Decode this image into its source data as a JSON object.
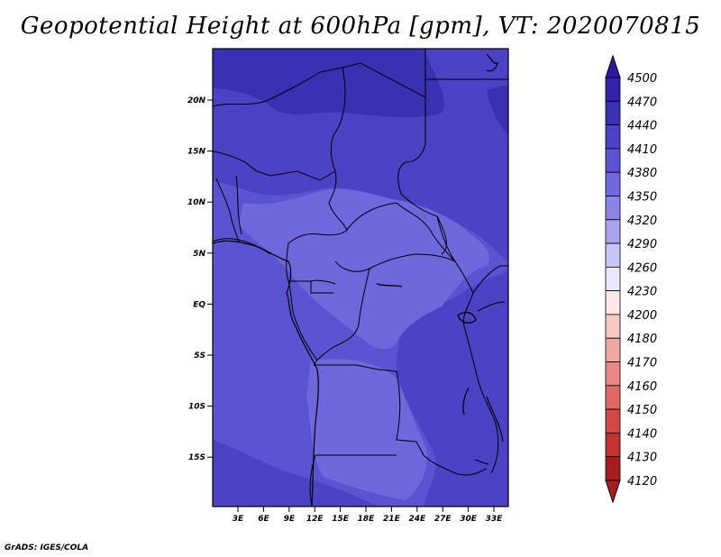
{
  "title": "Geopotential Height at 600hPa [gpm], VT: 2020070815",
  "credit": "GrADS: IGES/COLA",
  "map": {
    "lat_labels": [
      "20N",
      "15N",
      "10N",
      "5N",
      "EQ",
      "5S",
      "10S",
      "15S"
    ],
    "lon_labels": [
      "3E",
      "6E",
      "9E",
      "12E",
      "15E",
      "18E",
      "21E",
      "24E",
      "27E",
      "30E",
      "33E"
    ],
    "lat_range": [
      -20,
      24.5
    ],
    "lon_range": [
      0,
      35
    ]
  },
  "colorbar": {
    "levels": [
      "4500",
      "4470",
      "4440",
      "4410",
      "4380",
      "4350",
      "4320",
      "4290",
      "4260",
      "4230",
      "4200",
      "4180",
      "4170",
      "4160",
      "4150",
      "4140",
      "4130",
      "4120"
    ],
    "colors": [
      "#2c1a9e",
      "#3224a8",
      "#3a30b4",
      "#4c42c6",
      "#5a54d2",
      "#7068dc",
      "#8a84e4",
      "#a8a4ee",
      "#c8c6f6",
      "#e8e8fc",
      "#fde8e8",
      "#f8c8c4",
      "#f0a8a4",
      "#e88884",
      "#de6a66",
      "#d24a46",
      "#c43230",
      "#a81e1e"
    ]
  },
  "fields": {
    "colors": {
      "c4440": "#3a30b4",
      "c4410": "#4c42c6",
      "c4380": "#5a54d2",
      "c4350": "#6f67dc",
      "border": "#000000"
    }
  }
}
